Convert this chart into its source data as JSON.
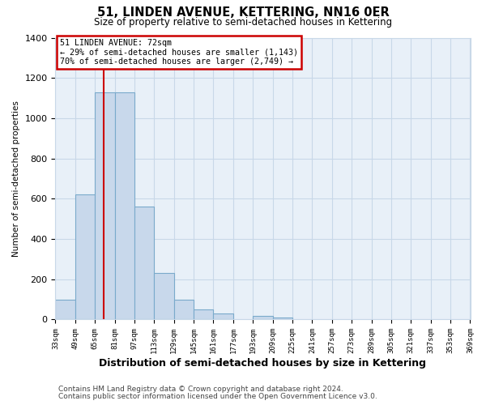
{
  "title": "51, LINDEN AVENUE, KETTERING, NN16 0ER",
  "subtitle": "Size of property relative to semi-detached houses in Kettering",
  "xlabel": "Distribution of semi-detached houses by size in Kettering",
  "ylabel": "Number of semi-detached properties",
  "bar_labels": [
    "33sqm",
    "49sqm",
    "65sqm",
    "81sqm",
    "97sqm",
    "113sqm",
    "129sqm",
    "145sqm",
    "161sqm",
    "177sqm",
    "193sqm",
    "209sqm",
    "225sqm",
    "241sqm",
    "257sqm",
    "273sqm",
    "289sqm",
    "305sqm",
    "321sqm",
    "337sqm",
    "353sqm"
  ],
  "bar_values": [
    100,
    620,
    1130,
    1130,
    560,
    230,
    100,
    50,
    30,
    0,
    20,
    10,
    0,
    0,
    0,
    0,
    0,
    0,
    0,
    0,
    0
  ],
  "bar_color": "#c8d8eb",
  "bar_edge_color": "#7aaacb",
  "property_line_x": 72,
  "bin_width": 16,
  "ylim": [
    0,
    1400
  ],
  "yticks": [
    0,
    200,
    400,
    600,
    800,
    1000,
    1200,
    1400
  ],
  "annotation_title": "51 LINDEN AVENUE: 72sqm",
  "annotation_line1": "← 29% of semi-detached houses are smaller (1,143)",
  "annotation_line2": "70% of semi-detached houses are larger (2,749) →",
  "annotation_box_facecolor": "#ffffff",
  "annotation_box_edgecolor": "#cc0000",
  "red_line_color": "#cc0000",
  "grid_color": "#c8d8e8",
  "plot_bg_color": "#e8f0f8",
  "fig_bg_color": "#ffffff",
  "footer1": "Contains HM Land Registry data © Crown copyright and database right 2024.",
  "footer2": "Contains public sector information licensed under the Open Government Licence v3.0."
}
